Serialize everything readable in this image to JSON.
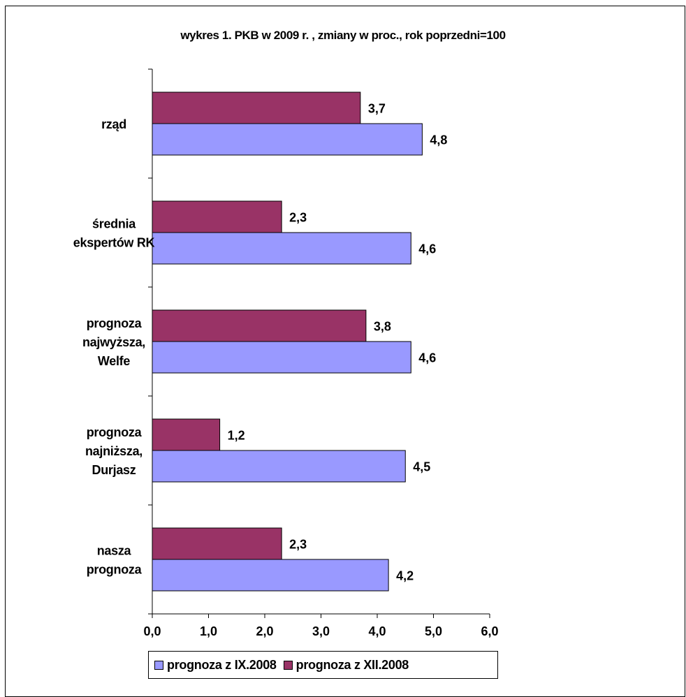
{
  "chart_data": {
    "type": "bar",
    "orientation": "horizontal",
    "title": "wykres 1. PKB w 2009 r. , zmiany w proc., rok poprzedni=100",
    "categories": [
      [
        "rząd"
      ],
      [
        "średnia",
        "ekspertów RK"
      ],
      [
        "prognoza",
        "najwyższa,",
        "Welfe"
      ],
      [
        "prognoza",
        "najniższa,",
        "Durjasz"
      ],
      [
        "nasza",
        "prognoza"
      ]
    ],
    "series": [
      {
        "name": "prognoza z XII.2008",
        "color": "#993366",
        "values": [
          3.7,
          2.3,
          3.8,
          1.2,
          2.3
        ],
        "labels": [
          "3,7",
          "2,3",
          "3,8",
          "1,2",
          "2,3"
        ]
      },
      {
        "name": "prognoza z IX.2008",
        "color": "#9999ff",
        "values": [
          4.8,
          4.6,
          4.6,
          4.5,
          4.2
        ],
        "labels": [
          "4,8",
          "4,6",
          "4,6",
          "4,5",
          "4,2"
        ]
      }
    ],
    "xlim": [
      0,
      6
    ],
    "ticks": [
      "0,0",
      "1,0",
      "2,0",
      "3,0",
      "4,0",
      "5,0",
      "6,0"
    ],
    "grid": false,
    "legend": {
      "position": "bottom",
      "items": [
        {
          "name": "prognoza z IX.2008",
          "color": "#9999ff"
        },
        {
          "name": "prognoza z XII.2008",
          "color": "#993366"
        }
      ]
    }
  }
}
